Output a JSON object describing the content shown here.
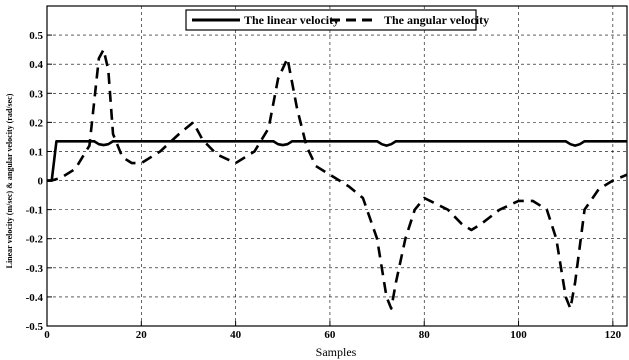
{
  "chart_data": {
    "type": "line",
    "xlabel": "Samples",
    "ylabel": "Linear velocity (m/sec) & angular velocity (rad/sec)",
    "xlim": [
      0,
      123
    ],
    "ylim": [
      -0.5,
      0.6
    ],
    "xticks": [
      0,
      20,
      40,
      60,
      80,
      100,
      120
    ],
    "yticks": [
      -0.5,
      -0.4,
      -0.3,
      -0.2,
      -0.1,
      0,
      0.1,
      0.2,
      0.3,
      0.4,
      0.5
    ],
    "xtick_labels": [
      "0",
      "20",
      "40",
      "60",
      "80",
      "100",
      "120"
    ],
    "ytick_labels": [
      "-0.5",
      "-0.4",
      "-0.3",
      "-0.2",
      "-0.1",
      "0",
      "0.1",
      "0.2",
      "0.3",
      "0.4",
      "0.5"
    ],
    "grid": true,
    "legend_position": "top-center",
    "series": [
      {
        "name": "The linear velocity",
        "style": "solid",
        "color": "#000000",
        "x": [
          0,
          1,
          2,
          10,
          11,
          12,
          13,
          14,
          48,
          49,
          50,
          51,
          52,
          70,
          71,
          72,
          73,
          74,
          110,
          111,
          112,
          113,
          114,
          123
        ],
        "y": [
          0,
          0,
          0.135,
          0.135,
          0.125,
          0.122,
          0.125,
          0.135,
          0.135,
          0.125,
          0.122,
          0.125,
          0.135,
          0.135,
          0.125,
          0.12,
          0.125,
          0.135,
          0.135,
          0.125,
          0.12,
          0.125,
          0.135,
          0.135
        ]
      },
      {
        "name": "The angular velocity",
        "style": "dashed",
        "color": "#000000",
        "x": [
          0,
          1,
          3,
          6,
          9,
          11,
          12,
          13,
          14,
          16,
          18,
          20,
          24,
          28,
          31,
          33,
          36,
          40,
          44,
          47,
          49,
          51,
          53,
          55,
          57,
          60,
          64,
          67,
          70,
          72,
          73,
          74,
          76,
          78,
          80,
          85,
          88,
          90,
          92,
          96,
          100,
          103,
          106,
          108,
          110,
          111,
          112,
          114,
          117,
          120,
          123
        ],
        "y": [
          0,
          0,
          0.01,
          0.04,
          0.12,
          0.42,
          0.45,
          0.38,
          0.16,
          0.08,
          0.06,
          0.06,
          0.1,
          0.16,
          0.2,
          0.14,
          0.09,
          0.06,
          0.1,
          0.18,
          0.35,
          0.42,
          0.25,
          0.12,
          0.05,
          0.02,
          -0.02,
          -0.06,
          -0.2,
          -0.4,
          -0.44,
          -0.35,
          -0.2,
          -0.1,
          -0.06,
          -0.1,
          -0.15,
          -0.17,
          -0.15,
          -0.1,
          -0.07,
          -0.07,
          -0.1,
          -0.2,
          -0.4,
          -0.44,
          -0.35,
          -0.1,
          -0.03,
          0.0,
          0.02
        ]
      }
    ]
  }
}
